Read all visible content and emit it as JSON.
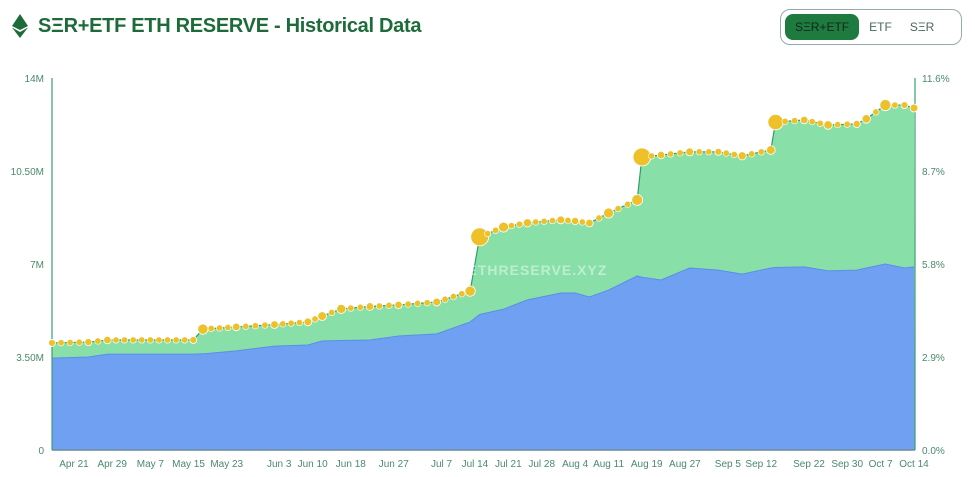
{
  "header": {
    "title": "SΞR+ETF ETH RESERVE - Historical Data",
    "icon": "ethereum-icon"
  },
  "toggle": {
    "options": [
      "SΞR+ETF",
      "ETF",
      "SΞR"
    ],
    "active": "SΞR+ETF"
  },
  "watermark": "STRATEGICETHRESERVE.XYZ",
  "colors": {
    "total_area": "#88e0a8",
    "ser_area": "#6fa0f2",
    "line": "#2e9e6a",
    "dots": "#eec12a",
    "accent": "#1e7a3e"
  },
  "chart_data": {
    "type": "area",
    "x": [
      "Apr 16",
      "Apr 24",
      "Apr 28",
      "May 16",
      "May 18",
      "May 25",
      "Jun 2",
      "Jun 9",
      "Jun 12",
      "Jun 16",
      "Jun 22",
      "Jun 28",
      "Jul 6",
      "Jul 13",
      "Jul 15",
      "Jul 20",
      "Jul 25",
      "Aug 1",
      "Aug 4",
      "Aug 7",
      "Aug 11",
      "Aug 17",
      "Aug 18",
      "Aug 22",
      "Aug 28",
      "Sep 3",
      "Sep 8",
      "Sep 14",
      "Sep 15",
      "Sep 21",
      "Sep 26",
      "Oct 2",
      "Oct 4",
      "Oct 8",
      "Oct 12",
      "Oct 14"
    ],
    "series": [
      {
        "values": [
          4.03,
          4.06,
          4.14,
          4.14,
          4.55,
          4.63,
          4.72,
          4.82,
          5.04,
          5.31,
          5.4,
          5.46,
          5.57,
          5.98,
          8.02,
          8.39,
          8.55,
          8.66,
          8.62,
          8.54,
          8.92,
          9.41,
          11.03,
          11.1,
          11.22,
          11.22,
          11.07,
          11.29,
          12.34,
          12.42,
          12.23,
          12.27,
          12.46,
          12.98,
          12.98,
          12.87
        ]
      },
      {
        "values": [
          3.46,
          3.5,
          3.61,
          3.61,
          3.62,
          3.73,
          3.91,
          3.95,
          4.1,
          4.12,
          4.14,
          4.29,
          4.37,
          4.82,
          5.1,
          5.3,
          5.65,
          5.91,
          5.91,
          5.76,
          6.02,
          6.55,
          6.5,
          6.4,
          6.85,
          6.77,
          6.62,
          6.85,
          6.87,
          6.89,
          6.74,
          6.77,
          6.85,
          7.0,
          6.85,
          6.89
        ]
      }
    ],
    "x_ticks": [
      "Apr 21",
      "Apr 29",
      "May 7",
      "May 15",
      "May 23",
      "Jun 3",
      "Jun 10",
      "Jun 18",
      "Jun 27",
      "Jul 7",
      "Jul 14",
      "Jul 21",
      "Jul 28",
      "Aug 4",
      "Aug 11",
      "Aug 19",
      "Aug 27",
      "Sep 5",
      "Sep 12",
      "Sep 22",
      "Sep 30",
      "Oct 7",
      "Oct 14"
    ],
    "y_ticks_left": [
      "0",
      "3.50M",
      "7M",
      "10.50M",
      "14M"
    ],
    "y_ticks_right": [
      "0.0%",
      "2.9%",
      "5.8%",
      "8.7%",
      "11.6%"
    ],
    "ylim": [
      0,
      14
    ],
    "units": "M ETH",
    "grid": false
  }
}
